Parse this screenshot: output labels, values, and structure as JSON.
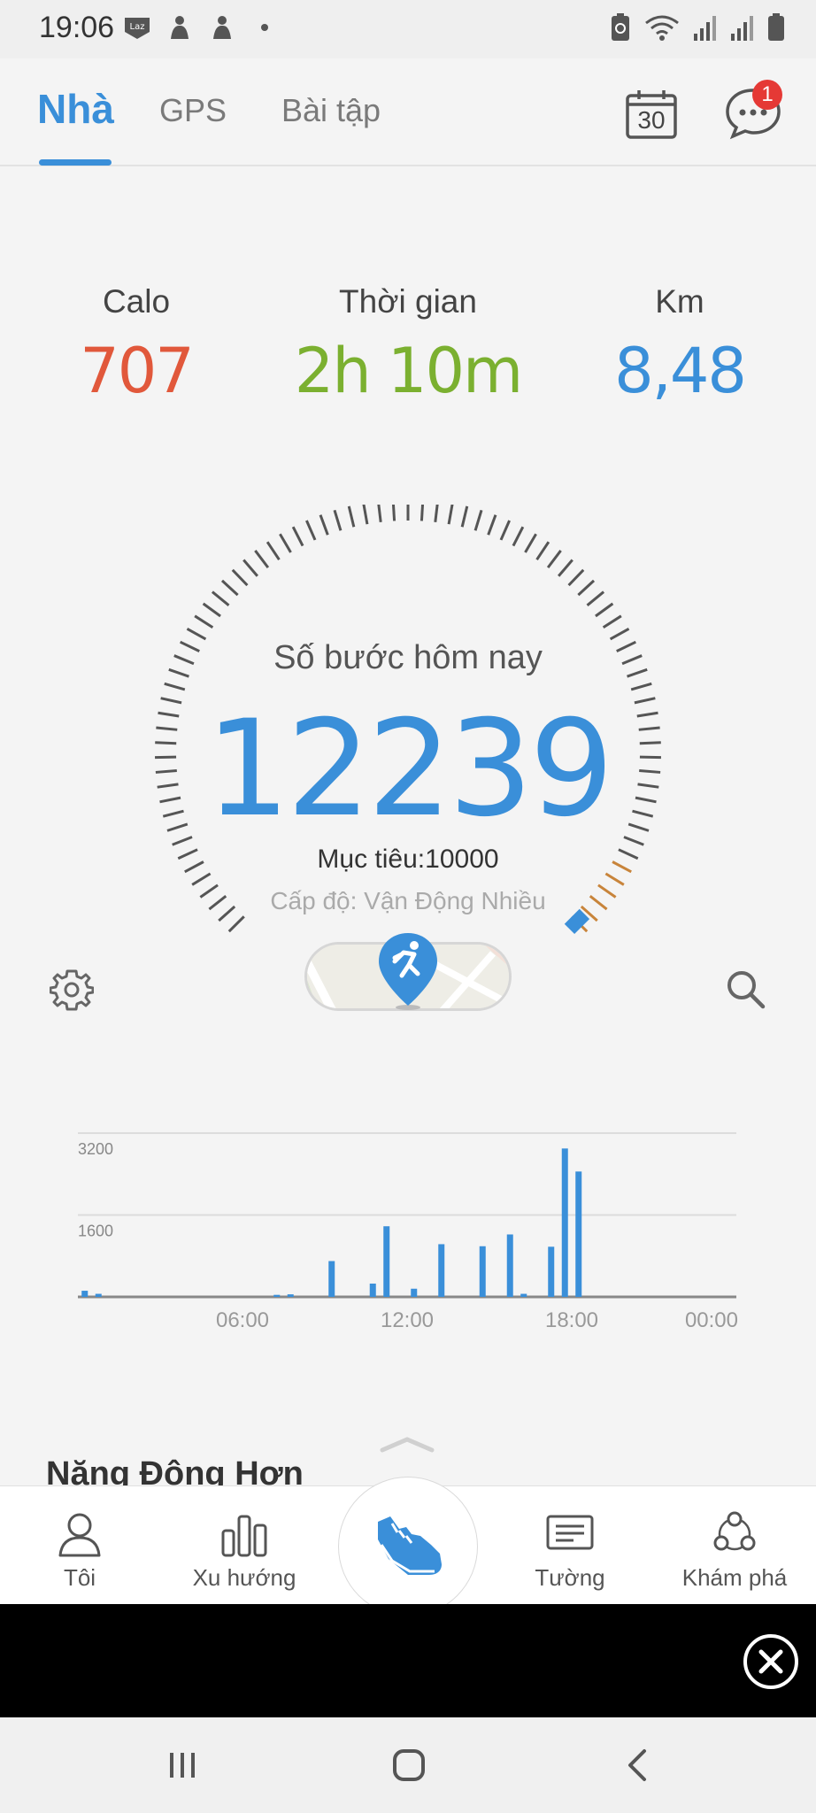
{
  "status_bar": {
    "time": "19:06",
    "left_icons": [
      "laz-icon",
      "person-icon",
      "person-icon",
      "dot-icon"
    ],
    "right_icons": [
      "battery-saver-icon",
      "wifi-icon",
      "signal-icon",
      "signal-icon",
      "battery-icon"
    ]
  },
  "tabs": {
    "home": "Nhà",
    "gps": "GPS",
    "workout": "Bài tập",
    "calendar_day": "30",
    "notification_count": "1"
  },
  "stats": {
    "calories": {
      "label": "Calo",
      "value": "707",
      "color": "#e1583b"
    },
    "time": {
      "label": "Thời gian",
      "value": "2h 10m",
      "color": "#7bb030"
    },
    "distance": {
      "label": "Km",
      "value": "8,48",
      "color": "#3a8fd9"
    }
  },
  "gauge": {
    "title": "Số bước hôm nay",
    "steps": "12239",
    "goal": "Mục tiêu:10000",
    "level": "Cấp độ: Vận Động Nhiều",
    "progress_fraction": 1.0,
    "accent": "#3a8fd9",
    "overflow_color": "#c8843a"
  },
  "chart_data": {
    "type": "bar",
    "y_ticks": [
      "3200",
      "1600"
    ],
    "x_ticks": [
      "06:00",
      "12:00",
      "18:00",
      "00:00"
    ],
    "ylim": [
      0,
      3200
    ],
    "xlim_hours": [
      0,
      24
    ],
    "grid": true,
    "bars": [
      {
        "hour": 0.25,
        "value": 120
      },
      {
        "hour": 0.75,
        "value": 60
      },
      {
        "hour": 7.25,
        "value": 40
      },
      {
        "hour": 7.75,
        "value": 50
      },
      {
        "hour": 9.25,
        "value": 700
      },
      {
        "hour": 10.75,
        "value": 260
      },
      {
        "hour": 11.25,
        "value": 1380
      },
      {
        "hour": 12.25,
        "value": 160
      },
      {
        "hour": 13.25,
        "value": 1030
      },
      {
        "hour": 14.75,
        "value": 990
      },
      {
        "hour": 15.75,
        "value": 1220
      },
      {
        "hour": 16.25,
        "value": 60
      },
      {
        "hour": 17.25,
        "value": 980
      },
      {
        "hour": 17.75,
        "value": 2900
      },
      {
        "hour": 18.25,
        "value": 2450
      }
    ]
  },
  "section": {
    "title": "Năng Động Hơn"
  },
  "bottom_nav": {
    "me": "Tôi",
    "trends": "Xu hướng",
    "wall": "Tường",
    "explore": "Khám phá"
  }
}
